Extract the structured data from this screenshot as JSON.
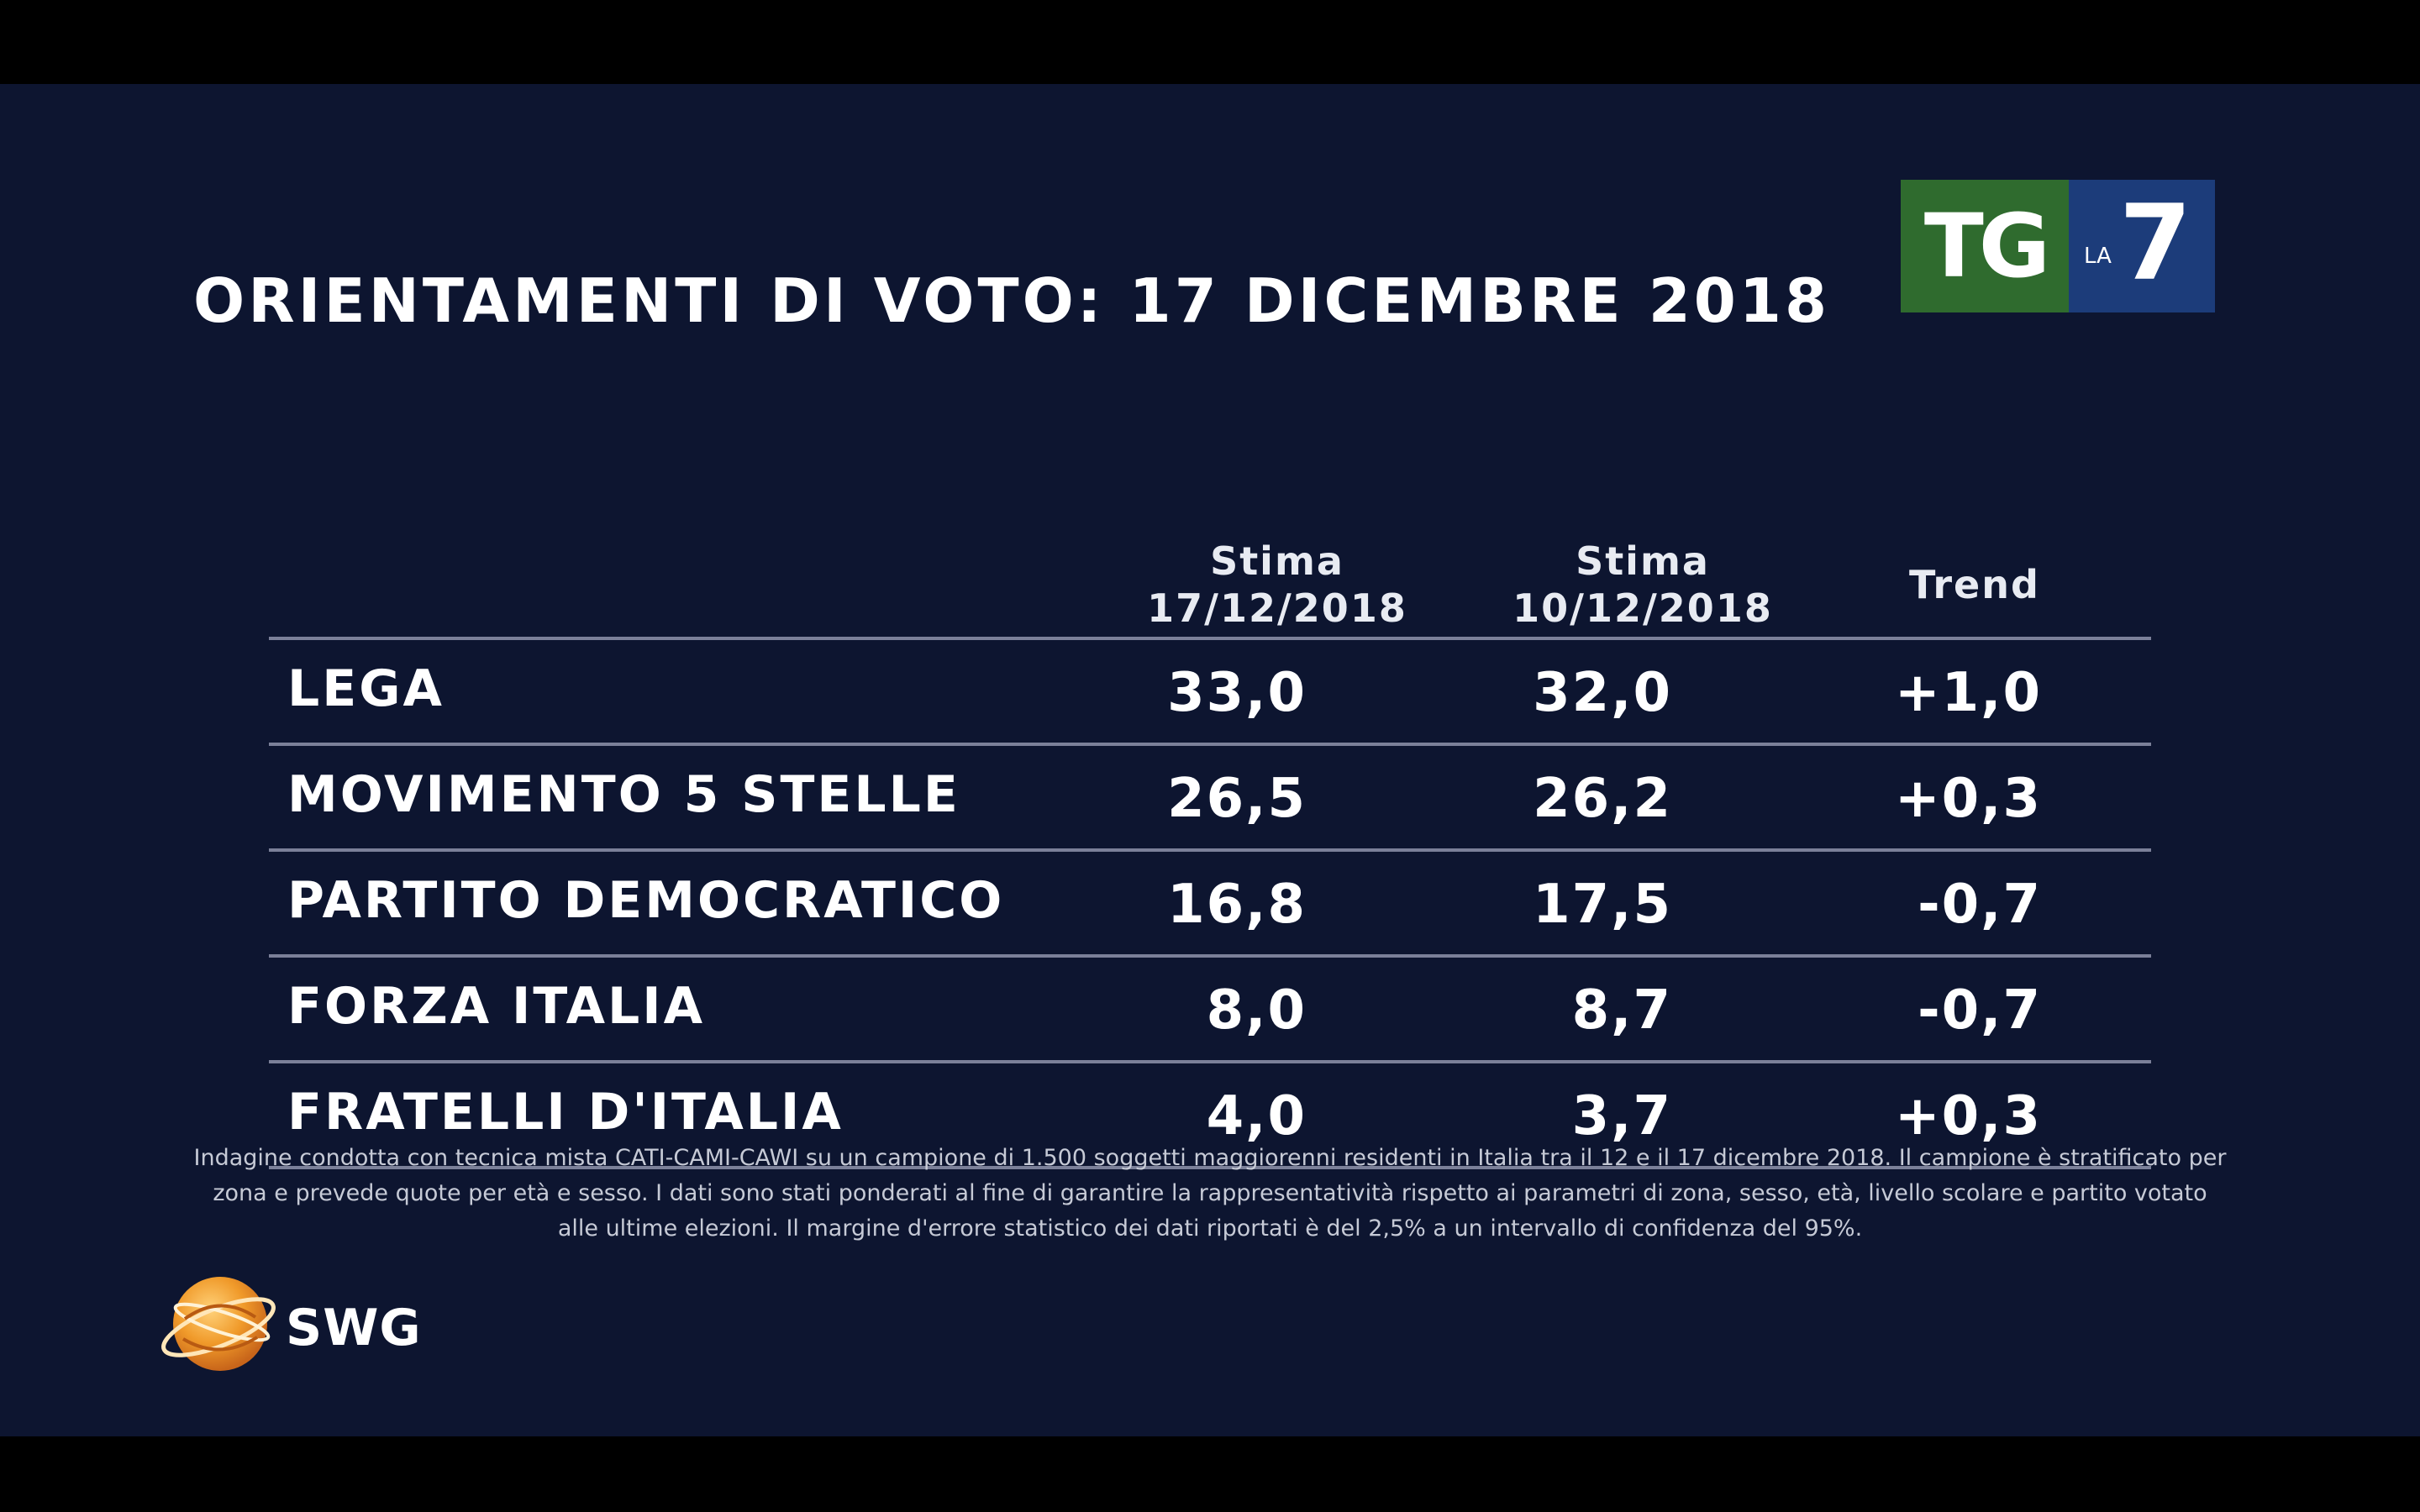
{
  "title": "ORIENTAMENTI DI VOTO: 17 DICEMBRE 2018",
  "logo_tg": {
    "tg": "TG",
    "la": "LA",
    "seven": "7",
    "colors": {
      "green": "#2f6b2e",
      "blue": "#1c3c7a"
    }
  },
  "chart_data": {
    "type": "table",
    "columns": [
      {
        "lines": [
          "Stima",
          "17/12/2018"
        ]
      },
      {
        "lines": [
          "Stima",
          "10/12/2018"
        ]
      },
      {
        "lines": [
          "Trend"
        ]
      }
    ],
    "rows": [
      {
        "party": "LEGA",
        "values": [
          "33,0",
          "32,0",
          "+1,0"
        ]
      },
      {
        "party": "MOVIMENTO 5 STELLE",
        "values": [
          "26,5",
          "26,2",
          "+0,3"
        ]
      },
      {
        "party": "PARTITO DEMOCRATICO",
        "values": [
          "16,8",
          "17,5",
          "-0,7"
        ]
      },
      {
        "party": "FORZA ITALIA",
        "values": [
          "8,0",
          "8,7",
          "-0,7"
        ]
      },
      {
        "party": "FRATELLI D'ITALIA",
        "values": [
          "4,0",
          "3,7",
          "+0,3"
        ]
      }
    ]
  },
  "note": "Indagine condotta con tecnica mista CATI-CAMI-CAWI su un campione di 1.500 soggetti maggiorenni residenti in Italia tra il 12 e il 17 dicembre 2018. Il campione è stratificato per zona e prevede quote per età e sesso. I dati sono stati ponderati al fine di garantire la rappresentatività rispetto ai parametri di zona, sesso, età, livello scolare e partito votato alle ultime elezioni. Il margine d'errore statistico dei dati riportati è del 2,5% a un intervallo di confidenza del 95%.",
  "swg_logo": {
    "text": "SWG",
    "colors": {
      "globe": "#f09a2a",
      "globe_dark": "#c8651a"
    }
  },
  "colors": {
    "background": "#0d1530",
    "rule": "#7b8099",
    "text": "#ffffff"
  }
}
